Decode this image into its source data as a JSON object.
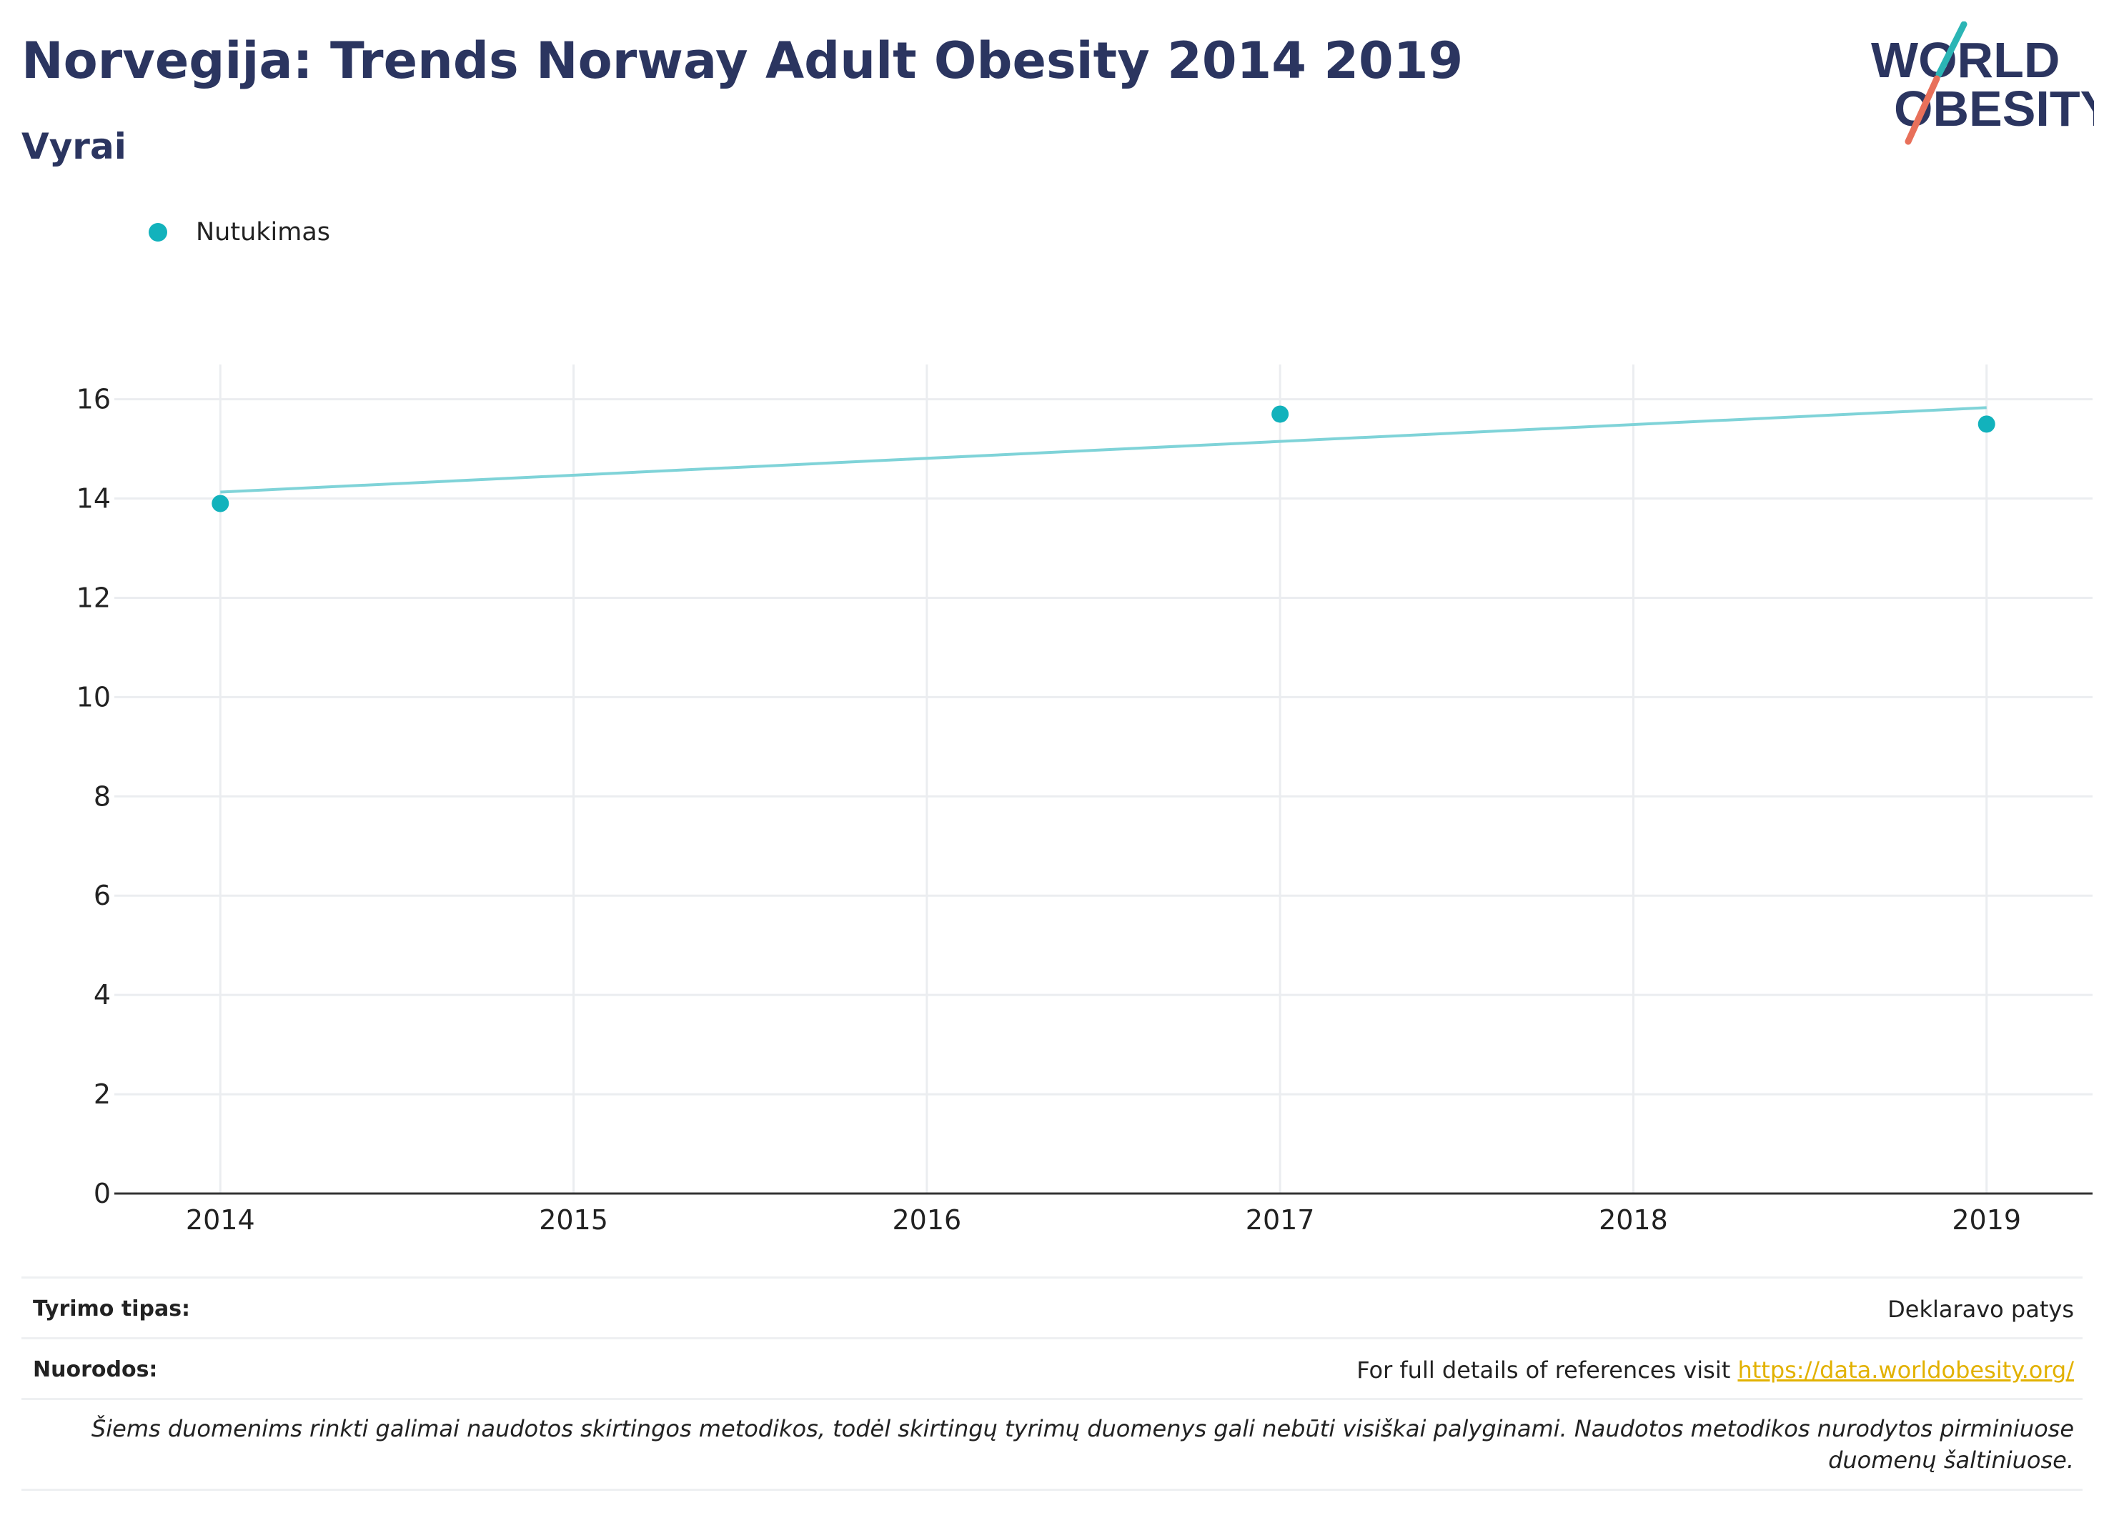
{
  "header": {
    "title": "Norvegija: Trends Norway Adult Obesity 2014 2019",
    "subtitle": "Vyrai"
  },
  "logo": {
    "line1": "WORLD",
    "line2": "OBESITY",
    "colors": {
      "text": "#2b3560",
      "slash_top": "#2bb5b5",
      "slash_bottom": "#e8705a"
    }
  },
  "legend": {
    "items": [
      {
        "label": "Nutukimas",
        "color": "#12b2bc"
      }
    ]
  },
  "chart_data": {
    "type": "scatter",
    "title": "",
    "xlabel": "",
    "ylabel": "",
    "x_ticks": [
      2014,
      2015,
      2016,
      2017,
      2018,
      2019
    ],
    "y_ticks": [
      0,
      2,
      4,
      6,
      8,
      10,
      12,
      14,
      16
    ],
    "xlim": [
      2013.7,
      2019.3
    ],
    "ylim": [
      0,
      16.7
    ],
    "grid": true,
    "legend_position": "top-left",
    "series": [
      {
        "name": "Nutukimas",
        "color": "#12b2bc",
        "points": [
          {
            "x": 2014,
            "y": 13.9
          },
          {
            "x": 2017,
            "y": 15.7
          },
          {
            "x": 2019,
            "y": 15.5
          }
        ]
      }
    ],
    "trendline": {
      "color": "#7fd3d8",
      "from": {
        "x": 2014,
        "y": 14.13
      },
      "to": {
        "x": 2019,
        "y": 15.83
      }
    }
  },
  "footer": {
    "survey_type_label": "Tyrimo tipas:",
    "survey_type_value": "Deklaravo patys",
    "references_label": "Nuorodos:",
    "references_text": "For full details of references visit ",
    "references_link": "https://data.worldobesity.org/",
    "note": "Šiems duomenims rinkti galimai naudotos skirtingos metodikos, todėl skirtingų tyrimų duomenys gali nebūti visiškai palyginami. Naudotos metodikos nurodytos pirminiuose duomenų šaltiniuose."
  }
}
